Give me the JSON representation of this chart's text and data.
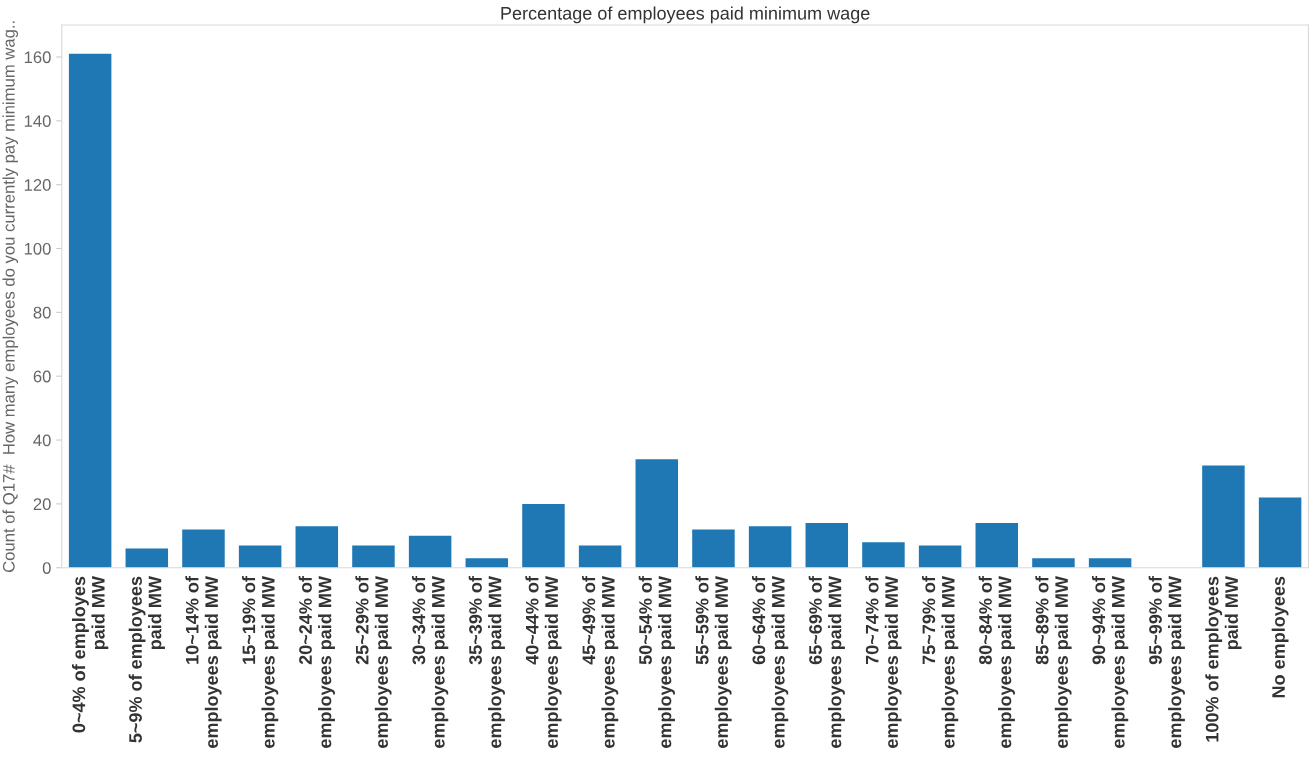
{
  "chart_data": {
    "type": "bar",
    "title": "Percentage of employees paid minimum wage",
    "ylabel": "Count of Q17#  How many employees do you currently pay minimum wag..",
    "categories": [
      "0~4% of employes\npaid MW",
      "5~9% of employees\npaid MW",
      "10~14% of\nemployees paid MW",
      "15~19% of\nemployees paid MW",
      "20~24% of\nemployees paid MW",
      "25~29% of\nemployees paid MW",
      "30~34% of\nemployees paid MW",
      "35~39% of\nemployees paid MW",
      "40~44% of\nemployees paid MW",
      "45~49% of\nemployees paid MW",
      "50~54% of\nemployees paid MW",
      "55~59% of\nemployees paid MW",
      "60~64% of\nemployees paid MW",
      "65~69% of\nemployees paid MW",
      "70~74% of\nemployees paid MW",
      "75~79% of\nemployees paid MW",
      "80~84% of\nemployees paid MW",
      "85~89% of\nemployees paid MW",
      "90~94% of\nemployees paid MW",
      "95~99% of\nemployees paid MW",
      "100% of employees\npaid MW",
      "No employees"
    ],
    "values": [
      161,
      6,
      12,
      7,
      13,
      7,
      10,
      3,
      20,
      7,
      34,
      12,
      13,
      14,
      8,
      7,
      14,
      3,
      3,
      0,
      32,
      22
    ],
    "color": "#1f77b4",
    "ylim": [
      0,
      170
    ],
    "yticks": [
      0,
      20,
      40,
      60,
      80,
      100,
      120,
      140,
      160
    ],
    "grid": false,
    "legend": false
  }
}
